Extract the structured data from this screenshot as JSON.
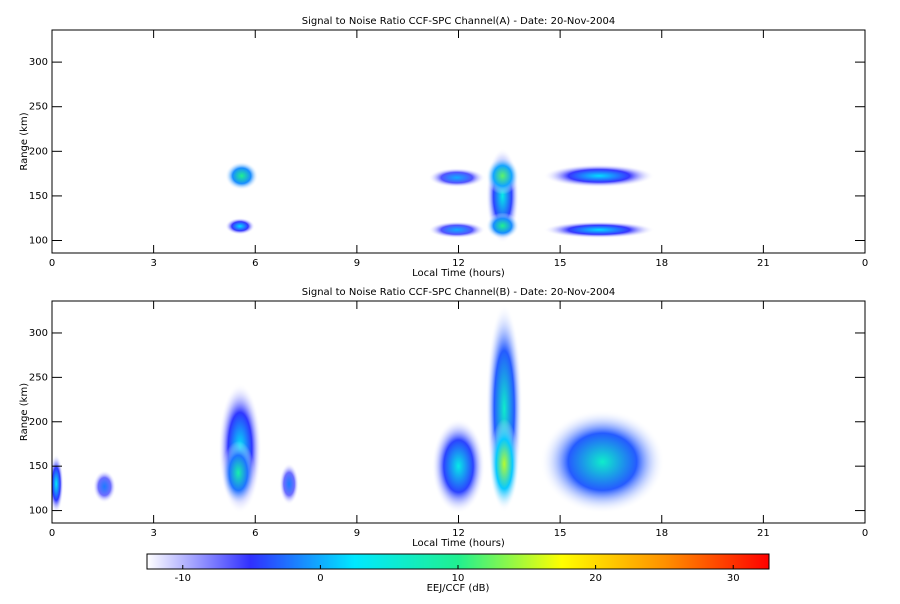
{
  "chart_data": [
    {
      "type": "heatmap",
      "title": "Signal to Noise Ratio CCF-SPC Channel(A) - Date: 20-Nov-2004",
      "x_label": "Local Time (hours)",
      "y_label": "Range (km)",
      "xlim": [
        0,
        24
      ],
      "xticks": [
        0,
        3,
        6,
        9,
        12,
        15,
        18,
        21,
        {
          "value": 24,
          "label": "0"
        }
      ],
      "ylim": [
        86,
        336
      ],
      "yticks": [
        100,
        150,
        200,
        250,
        300
      ],
      "echoes": [
        {
          "x": [
            5.2,
            6.0
          ],
          "y": [
            160,
            185
          ],
          "value": 10
        },
        {
          "x": [
            5.2,
            5.9
          ],
          "y": [
            110,
            122
          ],
          "value": 2
        },
        {
          "x": [
            11.2,
            12.7
          ],
          "y": [
            163,
            178
          ],
          "value": 0
        },
        {
          "x": [
            11.2,
            12.7
          ],
          "y": [
            106,
            118
          ],
          "value": 0
        },
        {
          "x": [
            12.9,
            13.7
          ],
          "y": [
            100,
            200
          ],
          "value": 4
        },
        {
          "x": [
            12.9,
            13.7
          ],
          "y": [
            155,
            190
          ],
          "value": 12
        },
        {
          "x": [
            12.9,
            13.7
          ],
          "y": [
            105,
            128
          ],
          "value": 10
        },
        {
          "x": [
            14.6,
            17.7
          ],
          "y": [
            163,
            182
          ],
          "value": 2
        },
        {
          "x": [
            14.6,
            17.7
          ],
          "y": [
            106,
            118
          ],
          "value": 2
        }
      ]
    },
    {
      "type": "heatmap",
      "title": "Signal to Noise Ratio CCF-SPC Channel(B) - Date: 20-Nov-2004",
      "x_label": "Local Time (hours)",
      "y_label": "Range (km)",
      "xlim": [
        0,
        24
      ],
      "xticks": [
        0,
        3,
        6,
        9,
        12,
        15,
        18,
        21,
        {
          "value": 24,
          "label": "0"
        }
      ],
      "ylim": [
        86,
        336
      ],
      "yticks": [
        100,
        150,
        200,
        250,
        300
      ],
      "echoes": [
        {
          "x": [
            0,
            0.25
          ],
          "y": [
            100,
            160
          ],
          "value": 3
        },
        {
          "x": [
            1.3,
            1.8
          ],
          "y": [
            112,
            142
          ],
          "value": -2
        },
        {
          "x": [
            5.0,
            6.1
          ],
          "y": [
            100,
            240
          ],
          "value": 3
        },
        {
          "x": [
            5.1,
            5.9
          ],
          "y": [
            110,
            175
          ],
          "value": 8
        },
        {
          "x": [
            6.8,
            7.2
          ],
          "y": [
            110,
            150
          ],
          "value": -2
        },
        {
          "x": [
            11.3,
            12.7
          ],
          "y": [
            100,
            200
          ],
          "value": 4
        },
        {
          "x": [
            12.9,
            13.8
          ],
          "y": [
            100,
            330
          ],
          "value": 6
        },
        {
          "x": [
            13.0,
            13.7
          ],
          "y": [
            105,
            200
          ],
          "value": 15
        },
        {
          "x": [
            14.5,
            18.0
          ],
          "y": [
            100,
            210
          ],
          "value": 6
        }
      ]
    },
    {
      "type": "colorbar",
      "label": "EEJ/CCF (dB)",
      "clim": [
        -12.6,
        32.6
      ],
      "ticks": [
        -10,
        0,
        10,
        20,
        30
      ],
      "colormap": [
        "#ffffff",
        "#3030ff",
        "#00e8ff",
        "#20f090",
        "#ffff00",
        "#ff9000",
        "#ff0000"
      ]
    }
  ]
}
